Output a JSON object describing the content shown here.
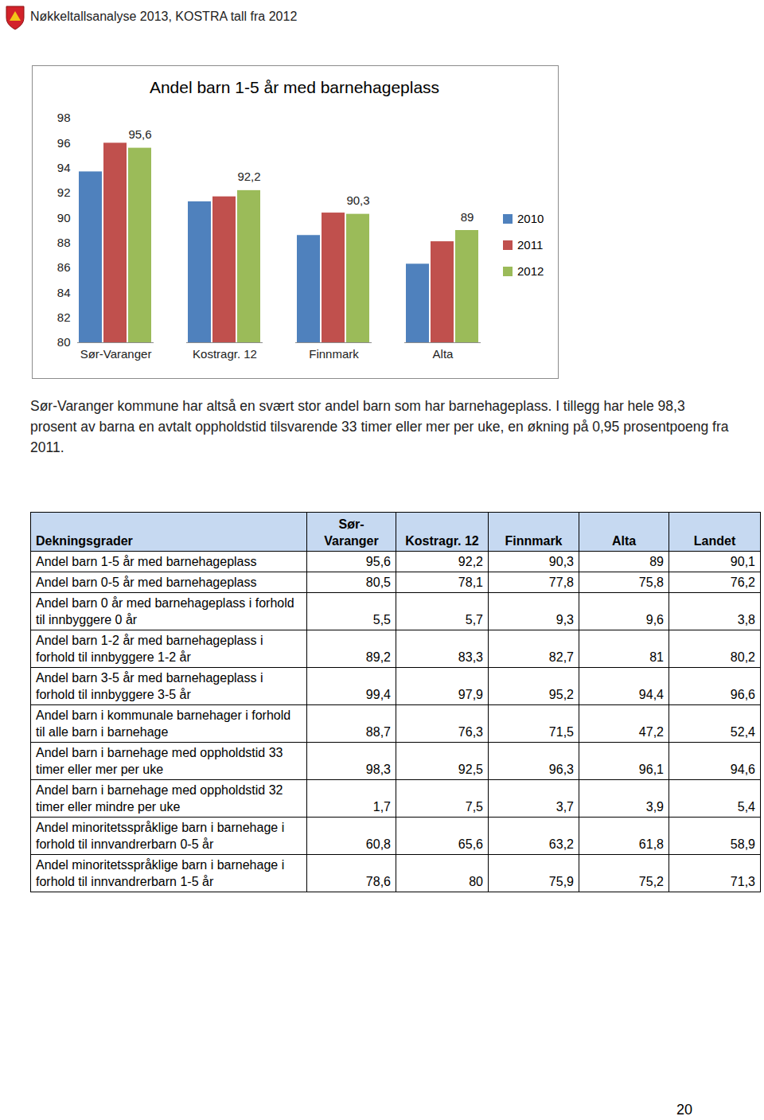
{
  "header": {
    "title": "Nøkkeltallsanalyse 2013, KOSTRA tall fra 2012"
  },
  "chart_data": {
    "type": "bar",
    "title": "Andel barn 1-5 år med barnehageplass",
    "categories": [
      "Sør-Varanger",
      "Kostragr. 12",
      "Finnmark",
      "Alta"
    ],
    "series": [
      {
        "name": "2010",
        "color": "#4f81bd",
        "values": [
          93.7,
          91.3,
          88.6,
          86.3
        ]
      },
      {
        "name": "2011",
        "color": "#c0504d",
        "values": [
          96.0,
          91.7,
          90.4,
          88.1
        ]
      },
      {
        "name": "2012",
        "color": "#9bbb59",
        "values": [
          95.6,
          92.2,
          90.3,
          89
        ],
        "value_labels": [
          "95,6",
          "92,2",
          "90,3",
          "89"
        ]
      }
    ],
    "ylim": [
      80,
      98
    ],
    "yticks": [
      80,
      82,
      84,
      86,
      88,
      90,
      92,
      94,
      96,
      98
    ],
    "grid": false,
    "legend": "right",
    "data_labels": true
  },
  "paragraph": "Sør-Varanger kommune har altså en svært stor andel barn som har barnehageplass. I tillegg har hele 98,3 prosent av barna en avtalt oppholdstid tilsvarende 33 timer eller mer per uke, en økning på 0,95 prosentpoeng fra 2011.",
  "table": {
    "header": [
      "Dekningsgrader",
      "Sør-Varanger",
      "Kostragr. 12",
      "Finnmark",
      "Alta",
      "Landet"
    ],
    "rows": [
      [
        "Andel barn 1-5 år med barnehageplass",
        "95,6",
        "92,2",
        "90,3",
        "89",
        "90,1"
      ],
      [
        "Andel barn 0-5 år med barnehageplass",
        "80,5",
        "78,1",
        "77,8",
        "75,8",
        "76,2"
      ],
      [
        "Andel barn 0 år med barnehageplass i forhold til innbyggere 0 år",
        "5,5",
        "5,7",
        "9,3",
        "9,6",
        "3,8"
      ],
      [
        "Andel barn 1-2 år med barnehageplass i forhold til innbyggere 1-2 år",
        "89,2",
        "83,3",
        "82,7",
        "81",
        "80,2"
      ],
      [
        "Andel barn 3-5 år med barnehageplass i forhold til innbyggere 3-5 år",
        "99,4",
        "97,9",
        "95,2",
        "94,4",
        "96,6"
      ],
      [
        "Andel barn i kommunale barnehager i forhold til alle barn i barnehage",
        "88,7",
        "76,3",
        "71,5",
        "47,2",
        "52,4"
      ],
      [
        "Andel barn i barnehage med oppholdstid 33 timer eller mer per uke",
        "98,3",
        "92,5",
        "96,3",
        "96,1",
        "94,6"
      ],
      [
        "Andel barn i barnehage med oppholdstid 32 timer eller mindre per uke",
        "1,7",
        "7,5",
        "3,7",
        "3,9",
        "5,4"
      ],
      [
        "Andel minoritetsspråklige barn i barnehage i forhold til innvandrerbarn 0-5 år",
        "60,8",
        "65,6",
        "63,2",
        "61,8",
        "58,9"
      ],
      [
        "Andel minoritetsspråklige barn i barnehage i forhold til innvandrerbarn 1-5 år",
        "78,6",
        "80",
        "75,9",
        "75,2",
        "71,3"
      ]
    ]
  },
  "page_number": "20"
}
